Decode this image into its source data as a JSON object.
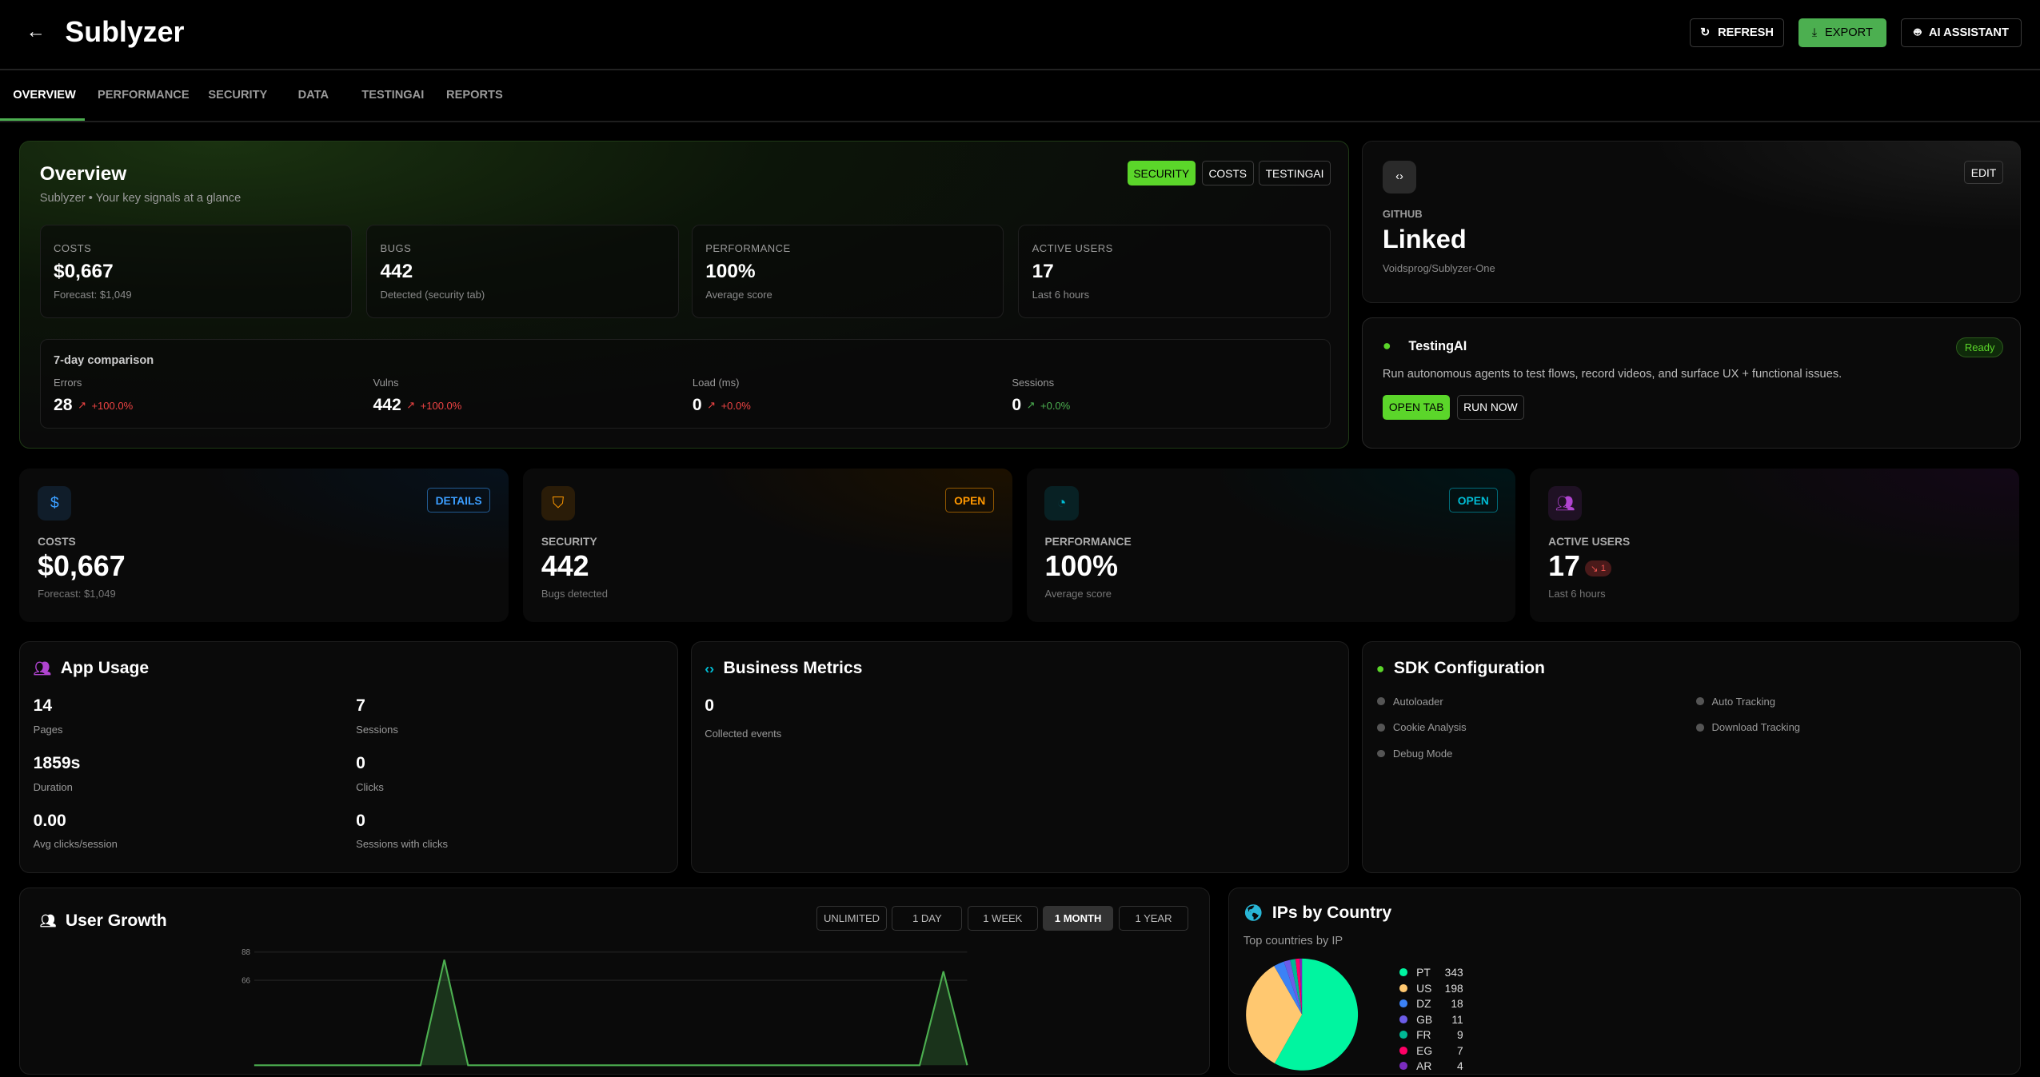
{
  "header": {
    "title": "Sublyzer",
    "refresh": "REFRESH",
    "export": "EXPORT",
    "ai": "AI ASSISTANT"
  },
  "tabs": [
    "OVERVIEW",
    "PERFORMANCE",
    "SECURITY",
    "DATA",
    "TESTINGAI",
    "REPORTS"
  ],
  "active_tab": "OVERVIEW",
  "overview": {
    "title": "Overview",
    "subtitle": "Sublyzer • Your key signals at a glance",
    "buttons": [
      "SECURITY",
      "COSTS",
      "TESTINGAI"
    ],
    "stats": [
      {
        "label": "COSTS",
        "value": "$0,667",
        "sub": "Forecast: $1,049"
      },
      {
        "label": "BUGS",
        "value": "442",
        "sub": "Detected (security tab)"
      },
      {
        "label": "PERFORMANCE",
        "value": "100%",
        "sub": "Average score"
      },
      {
        "label": "ACTIVE USERS",
        "value": "17",
        "sub": "Last 6 hours"
      }
    ],
    "comparison": {
      "title": "7-day comparison",
      "items": [
        {
          "label": "Errors",
          "value": "28",
          "delta": "+100.0%",
          "color": "#ef4444"
        },
        {
          "label": "Vulns",
          "value": "442",
          "delta": "+100.0%",
          "color": "#ef4444"
        },
        {
          "label": "Load (ms)",
          "value": "0",
          "delta": "+0.0%",
          "color": "#ef4444"
        },
        {
          "label": "Sessions",
          "value": "0",
          "delta": "+0.0%",
          "color": "#4caf50"
        }
      ]
    }
  },
  "github": {
    "label": "GITHUB",
    "status": "Linked",
    "repo": "Voidsprog/Sublyzer-One",
    "edit": "EDIT"
  },
  "testingai": {
    "title": "TestingAI",
    "badge": "Ready",
    "desc": "Run autonomous agents to test flows, record videos, and surface UX + functional issues.",
    "open": "OPEN TAB",
    "run": "RUN NOW"
  },
  "kpis": [
    {
      "label": "COSTS",
      "value": "$0,667",
      "sub": "Forecast: $1,049",
      "button": "DETAILS",
      "color": "#3b9eff",
      "icon": "dollar-icon"
    },
    {
      "label": "SECURITY",
      "value": "442",
      "sub": "Bugs detected",
      "button": "OPEN",
      "color": "#ff9800",
      "icon": "shield-icon"
    },
    {
      "label": "PERFORMANCE",
      "value": "100%",
      "sub": "Average score",
      "button": "OPEN",
      "color": "#00bcd4",
      "icon": "gauge-icon"
    },
    {
      "label": "ACTIVE USERS",
      "value": "17",
      "sub": "Last 6 hours",
      "badge": "1",
      "color": "#b044d0",
      "icon": "users-icon"
    }
  ],
  "app_usage": {
    "title": "App Usage",
    "items": [
      {
        "value": "14",
        "label": "Pages"
      },
      {
        "value": "7",
        "label": "Sessions"
      },
      {
        "value": "1859s",
        "label": "Duration"
      },
      {
        "value": "0",
        "label": "Clicks"
      },
      {
        "value": "0.00",
        "label": "Avg clicks/session"
      },
      {
        "value": "0",
        "label": "Sessions with clicks"
      }
    ]
  },
  "business": {
    "title": "Business Metrics",
    "value": "0",
    "label": "Collected events"
  },
  "sdk": {
    "title": "SDK Configuration",
    "items": [
      "Autoloader",
      "Auto Tracking",
      "Cookie Analysis",
      "Download Tracking",
      "Debug Mode"
    ]
  },
  "user_growth": {
    "title": "User Growth",
    "ranges": [
      "UNLIMITED",
      "1 DAY",
      "1 WEEK",
      "1 MONTH",
      "1 YEAR"
    ],
    "active_range": "1 MONTH"
  },
  "ips": {
    "title": "IPs by Country",
    "subtitle": "Top countries by IP"
  },
  "chart_data": [
    {
      "type": "line",
      "ylim": [
        0,
        88
      ],
      "yticks": [
        88,
        66
      ],
      "color": "#4caf50",
      "values": [
        0,
        0,
        0,
        0,
        0,
        0,
        0,
        0,
        82,
        0,
        0,
        0,
        0,
        0,
        0,
        0,
        0,
        0,
        0,
        0,
        0,
        0,
        0,
        0,
        0,
        0,
        0,
        0,
        0,
        73,
        0
      ]
    },
    {
      "type": "pie",
      "categories": [
        "PT",
        "US",
        "DZ",
        "GB",
        "FR",
        "EG",
        "AR"
      ],
      "values": [
        343,
        198,
        18,
        11,
        9,
        7,
        4
      ],
      "colors": [
        "#00f5a0",
        "#ffc870",
        "#3b82f6",
        "#6c5ce7",
        "#00b894",
        "#ff0066",
        "#7b2cbf"
      ],
      "legend": "right"
    }
  ]
}
